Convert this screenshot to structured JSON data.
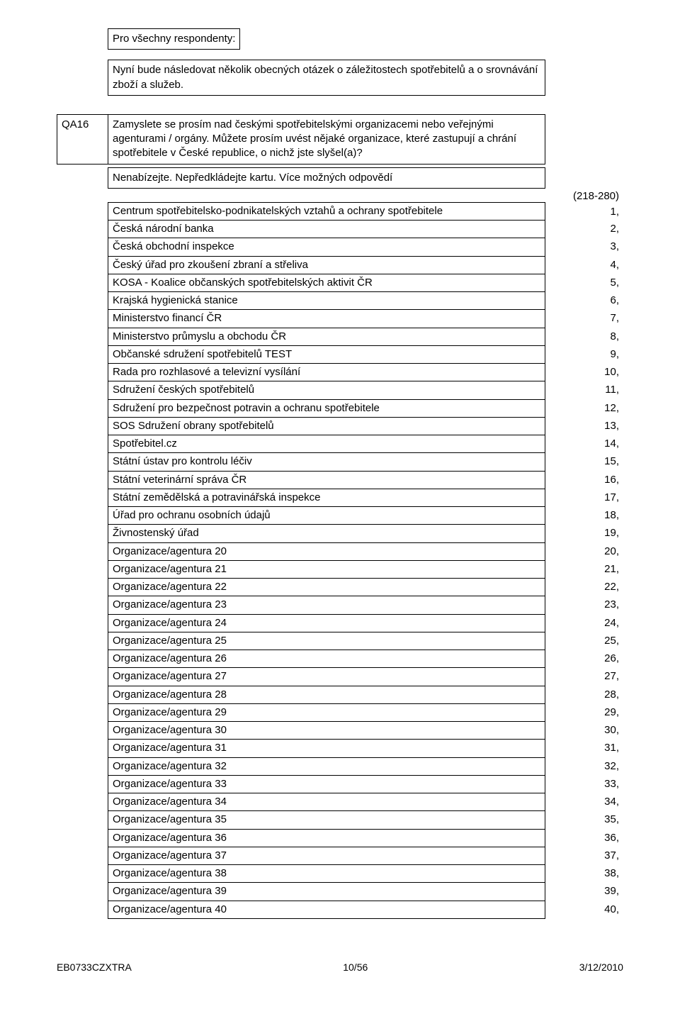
{
  "intro": {
    "line1": "Pro všechny respondenty:",
    "line2": "Nyní bude následovat několik obecných otázek o záležitostech spotřebitelů a o srovnávání zboží a služeb."
  },
  "qa": {
    "label": "QA16",
    "question": "Zamyslete se prosím nad českými spotřebitelskými organizacemi nebo veřejnými agenturami / orgány. Můžete prosím uvést nějaké organizace, které zastupují a chrání spotřebitele v České republice, o nichž jste slyšel(a)?",
    "instruction": "Nenabízejte. Nepředkládejte kartu. Více možných odpovědí",
    "range": "(218-280)"
  },
  "options": [
    {
      "label": "Centrum spotřebitelsko-podnikatelských vztahů a ochrany spotřebitele",
      "code": "1,"
    },
    {
      "label": "Česká národní banka",
      "code": "2,"
    },
    {
      "label": "Česká obchodní inspekce",
      "code": "3,"
    },
    {
      "label": "Český úřad pro zkoušení zbraní a střeliva",
      "code": "4,"
    },
    {
      "label": "KOSA - Koalice občanských spotřebitelských aktivit ČR",
      "code": "5,"
    },
    {
      "label": "Krajská hygienická stanice",
      "code": "6,"
    },
    {
      "label": "Ministerstvo financí ČR",
      "code": "7,"
    },
    {
      "label": "Ministerstvo průmyslu a obchodu ČR",
      "code": "8,"
    },
    {
      "label": "Občanské sdružení spotřebitelů TEST",
      "code": "9,"
    },
    {
      "label": "Rada pro rozhlasové a televizní vysílání",
      "code": "10,"
    },
    {
      "label": "Sdružení českých spotřebitelů",
      "code": "11,"
    },
    {
      "label": "Sdružení pro bezpečnost potravin a ochranu spotřebitele",
      "code": "12,"
    },
    {
      "label": "SOS Sdružení obrany spotřebitelů",
      "code": "13,"
    },
    {
      "label": "Spotřebitel.cz",
      "code": "14,"
    },
    {
      "label": "Státní ústav pro kontrolu léčiv",
      "code": "15,"
    },
    {
      "label": "Státní veterinární správa ČR",
      "code": "16,"
    },
    {
      "label": "Státní zemědělská a potravinářská inspekce",
      "code": "17,"
    },
    {
      "label": "Úřad pro ochranu osobních údajů",
      "code": "18,"
    },
    {
      "label": "Živnostenský úřad",
      "code": "19,"
    },
    {
      "label": "Organizace/agentura 20",
      "code": "20,"
    },
    {
      "label": "Organizace/agentura 21",
      "code": "21,"
    },
    {
      "label": "Organizace/agentura 22",
      "code": "22,"
    },
    {
      "label": "Organizace/agentura 23",
      "code": "23,"
    },
    {
      "label": "Organizace/agentura 24",
      "code": "24,"
    },
    {
      "label": "Organizace/agentura 25",
      "code": "25,"
    },
    {
      "label": "Organizace/agentura 26",
      "code": "26,"
    },
    {
      "label": "Organizace/agentura 27",
      "code": "27,"
    },
    {
      "label": "Organizace/agentura 28",
      "code": "28,"
    },
    {
      "label": "Organizace/agentura 29",
      "code": "29,"
    },
    {
      "label": "Organizace/agentura 30",
      "code": "30,"
    },
    {
      "label": "Organizace/agentura 31",
      "code": "31,"
    },
    {
      "label": "Organizace/agentura 32",
      "code": "32,"
    },
    {
      "label": "Organizace/agentura 33",
      "code": "33,"
    },
    {
      "label": "Organizace/agentura 34",
      "code": "34,"
    },
    {
      "label": "Organizace/agentura 35",
      "code": "35,"
    },
    {
      "label": "Organizace/agentura 36",
      "code": "36,"
    },
    {
      "label": "Organizace/agentura 37",
      "code": "37,"
    },
    {
      "label": "Organizace/agentura 38",
      "code": "38,"
    },
    {
      "label": "Organizace/agentura 39",
      "code": "39,"
    },
    {
      "label": "Organizace/agentura 40",
      "code": "40,"
    }
  ],
  "footer": {
    "left": "EB0733CZXTRA",
    "center": "10/56",
    "right": "3/12/2010"
  }
}
